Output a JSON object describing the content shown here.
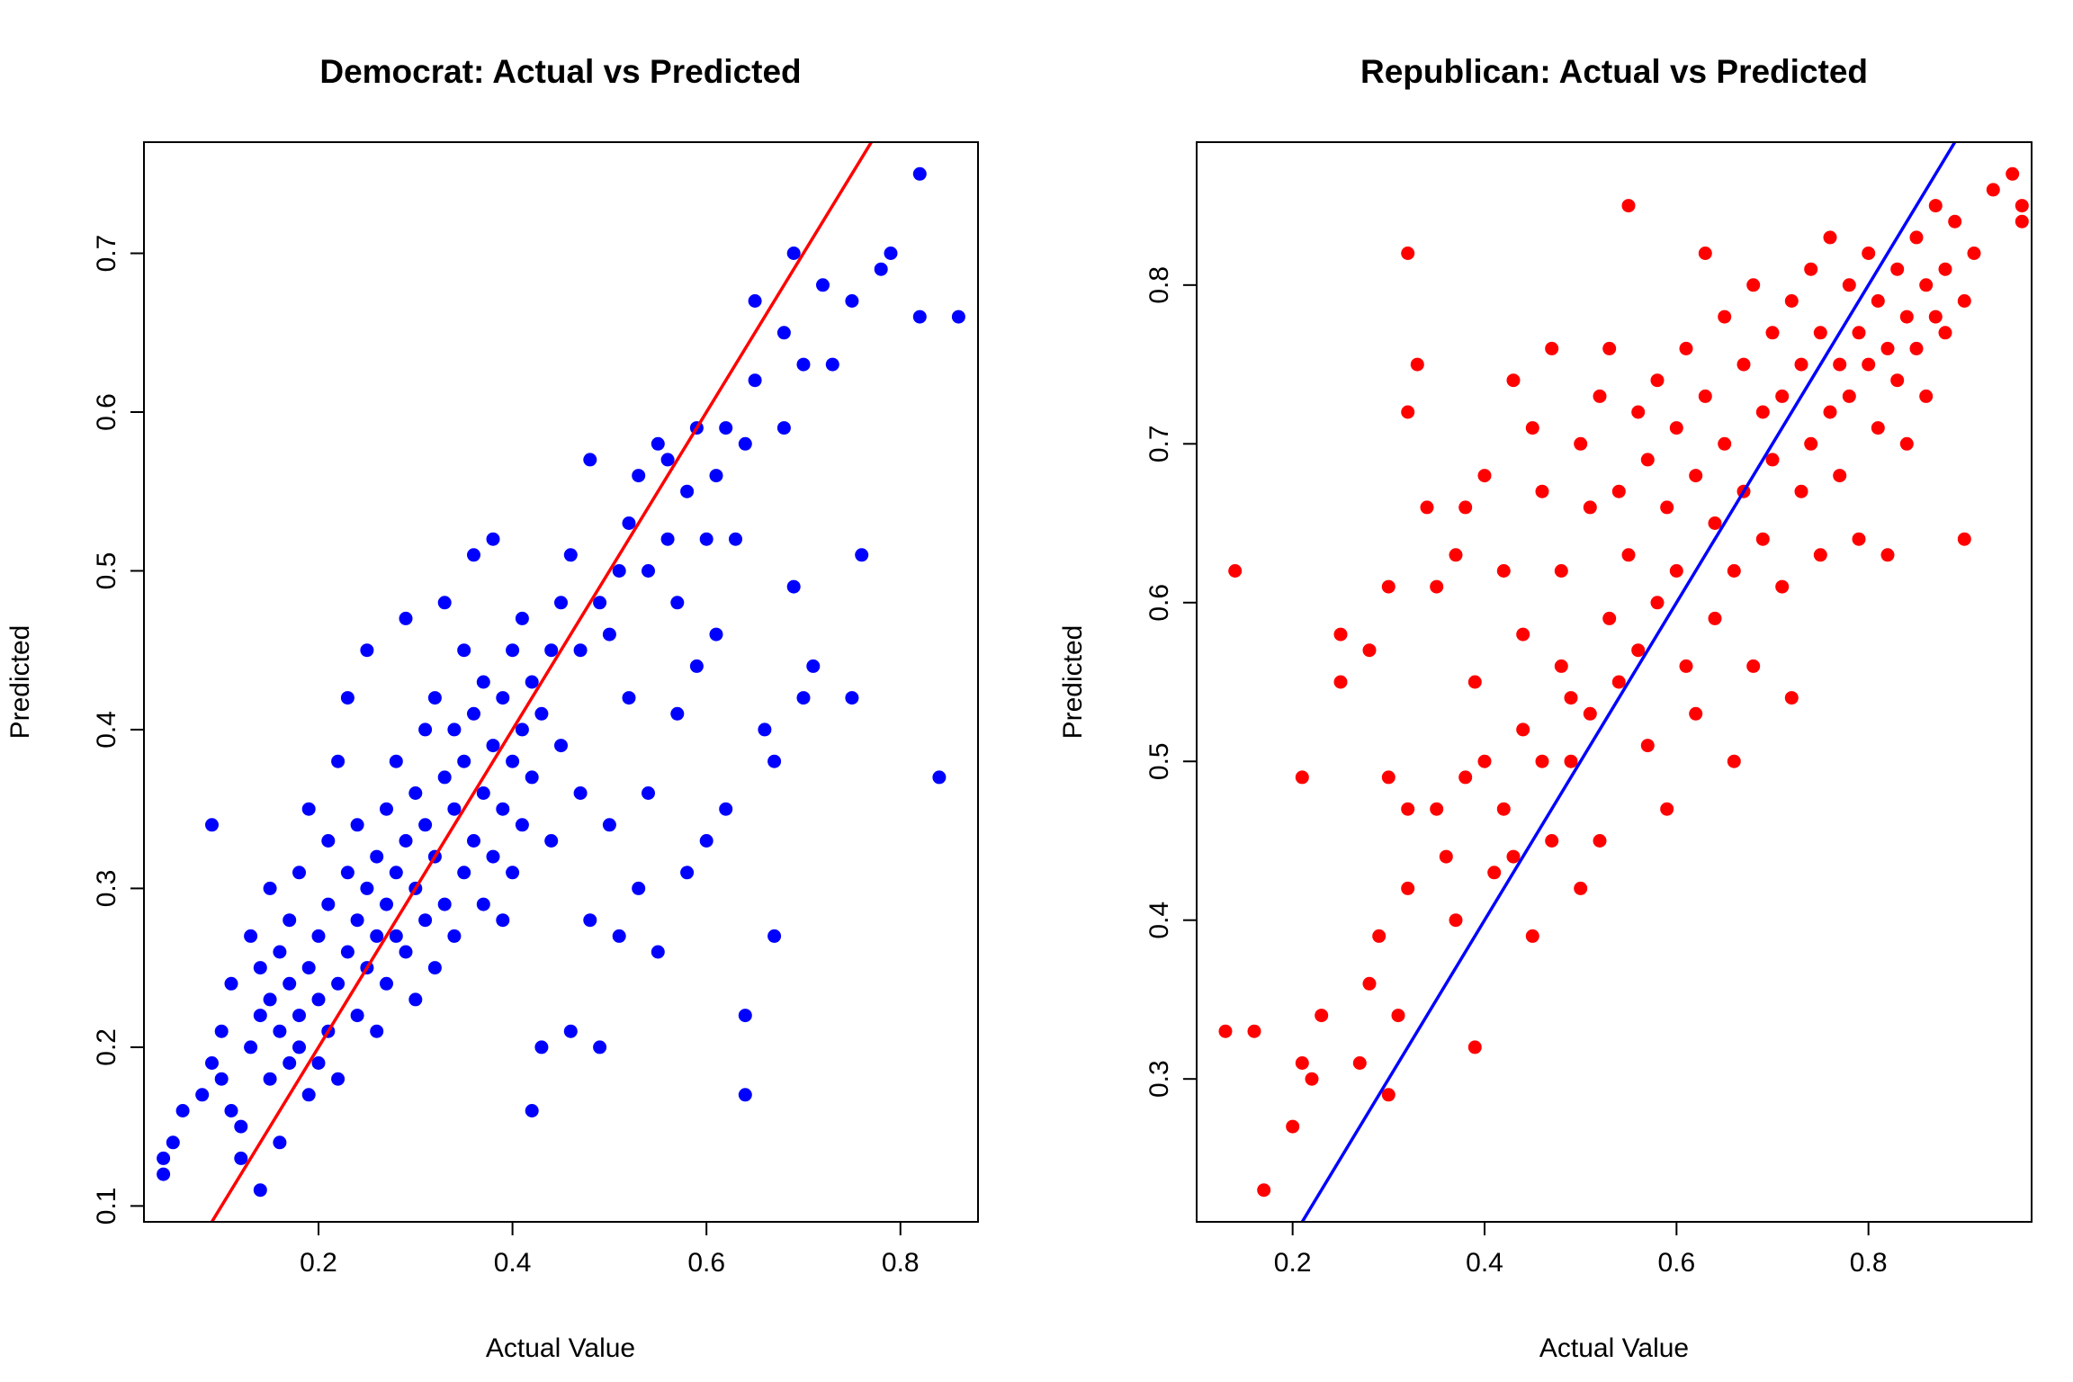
{
  "chart_data": [
    {
      "type": "scatter",
      "title": "Democrat: Actual vs Predicted",
      "xlabel": "Actual Value",
      "ylabel": "Predicted",
      "xlim": [
        0.02,
        0.88
      ],
      "ylim": [
        0.09,
        0.77
      ],
      "x_ticks": [
        "0.2",
        "0.4",
        "0.6",
        "0.8"
      ],
      "y_ticks": [
        "0.1",
        "0.2",
        "0.3",
        "0.4",
        "0.5",
        "0.6",
        "0.7"
      ],
      "point_color": "#0000ff",
      "line_color": "#ff0000",
      "reference_line": {
        "slope": 1.0,
        "intercept": 0.0
      },
      "grid": false,
      "points": [
        [
          0.04,
          0.12
        ],
        [
          0.04,
          0.13
        ],
        [
          0.05,
          0.14
        ],
        [
          0.06,
          0.16
        ],
        [
          0.08,
          0.17
        ],
        [
          0.09,
          0.19
        ],
        [
          0.1,
          0.18
        ],
        [
          0.1,
          0.21
        ],
        [
          0.11,
          0.24
        ],
        [
          0.11,
          0.16
        ],
        [
          0.12,
          0.13
        ],
        [
          0.12,
          0.15
        ],
        [
          0.13,
          0.2
        ],
        [
          0.13,
          0.27
        ],
        [
          0.14,
          0.22
        ],
        [
          0.14,
          0.25
        ],
        [
          0.14,
          0.11
        ],
        [
          0.15,
          0.18
        ],
        [
          0.15,
          0.23
        ],
        [
          0.15,
          0.3
        ],
        [
          0.16,
          0.21
        ],
        [
          0.16,
          0.26
        ],
        [
          0.16,
          0.14
        ],
        [
          0.17,
          0.19
        ],
        [
          0.17,
          0.24
        ],
        [
          0.17,
          0.28
        ],
        [
          0.18,
          0.2
        ],
        [
          0.18,
          0.22
        ],
        [
          0.18,
          0.31
        ],
        [
          0.19,
          0.25
        ],
        [
          0.19,
          0.17
        ],
        [
          0.19,
          0.35
        ],
        [
          0.2,
          0.23
        ],
        [
          0.2,
          0.27
        ],
        [
          0.2,
          0.19
        ],
        [
          0.21,
          0.29
        ],
        [
          0.21,
          0.21
        ],
        [
          0.21,
          0.33
        ],
        [
          0.22,
          0.24
        ],
        [
          0.22,
          0.38
        ],
        [
          0.22,
          0.18
        ],
        [
          0.23,
          0.26
        ],
        [
          0.23,
          0.31
        ],
        [
          0.23,
          0.42
        ],
        [
          0.24,
          0.22
        ],
        [
          0.24,
          0.28
        ],
        [
          0.24,
          0.34
        ],
        [
          0.25,
          0.25
        ],
        [
          0.25,
          0.3
        ],
        [
          0.25,
          0.45
        ],
        [
          0.26,
          0.27
        ],
        [
          0.26,
          0.32
        ],
        [
          0.26,
          0.21
        ],
        [
          0.27,
          0.29
        ],
        [
          0.27,
          0.35
        ],
        [
          0.27,
          0.24
        ],
        [
          0.28,
          0.31
        ],
        [
          0.28,
          0.27
        ],
        [
          0.28,
          0.38
        ],
        [
          0.29,
          0.33
        ],
        [
          0.29,
          0.26
        ],
        [
          0.29,
          0.47
        ],
        [
          0.3,
          0.3
        ],
        [
          0.3,
          0.36
        ],
        [
          0.3,
          0.23
        ],
        [
          0.31,
          0.28
        ],
        [
          0.31,
          0.4
        ],
        [
          0.31,
          0.34
        ],
        [
          0.32,
          0.32
        ],
        [
          0.32,
          0.25
        ],
        [
          0.32,
          0.42
        ],
        [
          0.33,
          0.37
        ],
        [
          0.33,
          0.29
        ],
        [
          0.33,
          0.48
        ],
        [
          0.34,
          0.35
        ],
        [
          0.34,
          0.27
        ],
        [
          0.34,
          0.4
        ],
        [
          0.35,
          0.38
        ],
        [
          0.35,
          0.31
        ],
        [
          0.35,
          0.45
        ],
        [
          0.36,
          0.41
        ],
        [
          0.36,
          0.33
        ],
        [
          0.36,
          0.51
        ],
        [
          0.37,
          0.36
        ],
        [
          0.37,
          0.29
        ],
        [
          0.37,
          0.43
        ],
        [
          0.38,
          0.39
        ],
        [
          0.38,
          0.32
        ],
        [
          0.38,
          0.52
        ],
        [
          0.39,
          0.42
        ],
        [
          0.39,
          0.35
        ],
        [
          0.39,
          0.28
        ],
        [
          0.4,
          0.38
        ],
        [
          0.4,
          0.45
        ],
        [
          0.4,
          0.31
        ],
        [
          0.41,
          0.4
        ],
        [
          0.41,
          0.47
        ],
        [
          0.41,
          0.34
        ],
        [
          0.42,
          0.43
        ],
        [
          0.42,
          0.37
        ],
        [
          0.42,
          0.16
        ],
        [
          0.43,
          0.41
        ],
        [
          0.43,
          0.2
        ],
        [
          0.44,
          0.45
        ],
        [
          0.44,
          0.33
        ],
        [
          0.45,
          0.48
        ],
        [
          0.45,
          0.39
        ],
        [
          0.46,
          0.51
        ],
        [
          0.46,
          0.21
        ],
        [
          0.47,
          0.45
        ],
        [
          0.47,
          0.36
        ],
        [
          0.48,
          0.57
        ],
        [
          0.48,
          0.28
        ],
        [
          0.49,
          0.48
        ],
        [
          0.49,
          0.2
        ],
        [
          0.5,
          0.46
        ],
        [
          0.5,
          0.34
        ],
        [
          0.51,
          0.5
        ],
        [
          0.51,
          0.27
        ],
        [
          0.52,
          0.53
        ],
        [
          0.52,
          0.42
        ],
        [
          0.53,
          0.56
        ],
        [
          0.53,
          0.3
        ],
        [
          0.54,
          0.5
        ],
        [
          0.54,
          0.36
        ],
        [
          0.55,
          0.58
        ],
        [
          0.55,
          0.26
        ],
        [
          0.56,
          0.52
        ],
        [
          0.56,
          0.57
        ],
        [
          0.57,
          0.41
        ],
        [
          0.57,
          0.48
        ],
        [
          0.58,
          0.55
        ],
        [
          0.58,
          0.31
        ],
        [
          0.59,
          0.44
        ],
        [
          0.59,
          0.59
        ],
        [
          0.6,
          0.52
        ],
        [
          0.6,
          0.33
        ],
        [
          0.61,
          0.56
        ],
        [
          0.61,
          0.46
        ],
        [
          0.62,
          0.59
        ],
        [
          0.62,
          0.35
        ],
        [
          0.63,
          0.52
        ],
        [
          0.64,
          0.58
        ],
        [
          0.64,
          0.17
        ],
        [
          0.64,
          0.22
        ],
        [
          0.65,
          0.62
        ],
        [
          0.65,
          0.67
        ],
        [
          0.66,
          0.4
        ],
        [
          0.67,
          0.27
        ],
        [
          0.67,
          0.38
        ],
        [
          0.68,
          0.65
        ],
        [
          0.68,
          0.59
        ],
        [
          0.69,
          0.7
        ],
        [
          0.69,
          0.49
        ],
        [
          0.7,
          0.63
        ],
        [
          0.7,
          0.42
        ],
        [
          0.71,
          0.44
        ],
        [
          0.72,
          0.68
        ],
        [
          0.73,
          0.63
        ],
        [
          0.75,
          0.67
        ],
        [
          0.75,
          0.42
        ],
        [
          0.76,
          0.51
        ],
        [
          0.78,
          0.69
        ],
        [
          0.79,
          0.7
        ],
        [
          0.82,
          0.75
        ],
        [
          0.82,
          0.66
        ],
        [
          0.84,
          0.37
        ],
        [
          0.86,
          0.66
        ],
        [
          0.09,
          0.34
        ]
      ]
    },
    {
      "type": "scatter",
      "title": "Republican: Actual vs Predicted",
      "xlabel": "Actual Value",
      "ylabel": "Predicted",
      "xlim": [
        0.1,
        0.97
      ],
      "ylim": [
        0.21,
        0.89
      ],
      "x_ticks": [
        "0.2",
        "0.4",
        "0.6",
        "0.8"
      ],
      "y_ticks": [
        "0.3",
        "0.4",
        "0.5",
        "0.6",
        "0.7",
        "0.8"
      ],
      "point_color": "#ff0000",
      "line_color": "#0000ff",
      "reference_line": {
        "slope": 1.0,
        "intercept": 0.0
      },
      "grid": false,
      "points": [
        [
          0.13,
          0.33
        ],
        [
          0.14,
          0.62
        ],
        [
          0.16,
          0.33
        ],
        [
          0.17,
          0.23
        ],
        [
          0.2,
          0.27
        ],
        [
          0.21,
          0.49
        ],
        [
          0.21,
          0.31
        ],
        [
          0.22,
          0.3
        ],
        [
          0.23,
          0.34
        ],
        [
          0.25,
          0.58
        ],
        [
          0.25,
          0.55
        ],
        [
          0.27,
          0.31
        ],
        [
          0.28,
          0.57
        ],
        [
          0.28,
          0.36
        ],
        [
          0.29,
          0.39
        ],
        [
          0.3,
          0.49
        ],
        [
          0.3,
          0.61
        ],
        [
          0.3,
          0.29
        ],
        [
          0.31,
          0.34
        ],
        [
          0.32,
          0.72
        ],
        [
          0.32,
          0.82
        ],
        [
          0.32,
          0.47
        ],
        [
          0.32,
          0.42
        ],
        [
          0.33,
          0.75
        ],
        [
          0.34,
          0.66
        ],
        [
          0.35,
          0.61
        ],
        [
          0.35,
          0.47
        ],
        [
          0.36,
          0.44
        ],
        [
          0.37,
          0.63
        ],
        [
          0.37,
          0.4
        ],
        [
          0.38,
          0.66
        ],
        [
          0.38,
          0.49
        ],
        [
          0.39,
          0.55
        ],
        [
          0.39,
          0.32
        ],
        [
          0.4,
          0.68
        ],
        [
          0.4,
          0.5
        ],
        [
          0.41,
          0.43
        ],
        [
          0.42,
          0.62
        ],
        [
          0.42,
          0.47
        ],
        [
          0.43,
          0.74
        ],
        [
          0.43,
          0.44
        ],
        [
          0.44,
          0.58
        ],
        [
          0.44,
          0.52
        ],
        [
          0.45,
          0.71
        ],
        [
          0.45,
          0.39
        ],
        [
          0.46,
          0.67
        ],
        [
          0.46,
          0.5
        ],
        [
          0.47,
          0.76
        ],
        [
          0.47,
          0.45
        ],
        [
          0.48,
          0.56
        ],
        [
          0.48,
          0.62
        ],
        [
          0.49,
          0.54
        ],
        [
          0.49,
          0.5
        ],
        [
          0.5,
          0.7
        ],
        [
          0.5,
          0.42
        ],
        [
          0.51,
          0.66
        ],
        [
          0.51,
          0.53
        ],
        [
          0.52,
          0.73
        ],
        [
          0.52,
          0.45
        ],
        [
          0.53,
          0.59
        ],
        [
          0.53,
          0.76
        ],
        [
          0.54,
          0.67
        ],
        [
          0.54,
          0.55
        ],
        [
          0.55,
          0.85
        ],
        [
          0.55,
          0.63
        ],
        [
          0.56,
          0.72
        ],
        [
          0.56,
          0.57
        ],
        [
          0.57,
          0.69
        ],
        [
          0.57,
          0.51
        ],
        [
          0.58,
          0.74
        ],
        [
          0.58,
          0.6
        ],
        [
          0.59,
          0.66
        ],
        [
          0.59,
          0.47
        ],
        [
          0.6,
          0.71
        ],
        [
          0.6,
          0.62
        ],
        [
          0.61,
          0.76
        ],
        [
          0.61,
          0.56
        ],
        [
          0.62,
          0.68
        ],
        [
          0.62,
          0.53
        ],
        [
          0.63,
          0.73
        ],
        [
          0.63,
          0.82
        ],
        [
          0.64,
          0.65
        ],
        [
          0.64,
          0.59
        ],
        [
          0.65,
          0.78
        ],
        [
          0.65,
          0.7
        ],
        [
          0.66,
          0.62
        ],
        [
          0.66,
          0.5
        ],
        [
          0.67,
          0.75
        ],
        [
          0.67,
          0.67
        ],
        [
          0.68,
          0.8
        ],
        [
          0.68,
          0.56
        ],
        [
          0.69,
          0.72
        ],
        [
          0.69,
          0.64
        ],
        [
          0.7,
          0.77
        ],
        [
          0.7,
          0.69
        ],
        [
          0.71,
          0.73
        ],
        [
          0.71,
          0.61
        ],
        [
          0.72,
          0.79
        ],
        [
          0.72,
          0.54
        ],
        [
          0.73,
          0.75
        ],
        [
          0.73,
          0.67
        ],
        [
          0.74,
          0.81
        ],
        [
          0.74,
          0.7
        ],
        [
          0.75,
          0.77
        ],
        [
          0.75,
          0.63
        ],
        [
          0.76,
          0.83
        ],
        [
          0.76,
          0.72
        ],
        [
          0.77,
          0.75
        ],
        [
          0.77,
          0.68
        ],
        [
          0.78,
          0.8
        ],
        [
          0.78,
          0.73
        ],
        [
          0.79,
          0.77
        ],
        [
          0.79,
          0.64
        ],
        [
          0.8,
          0.82
        ],
        [
          0.8,
          0.75
        ],
        [
          0.81,
          0.71
        ],
        [
          0.81,
          0.79
        ],
        [
          0.82,
          0.76
        ],
        [
          0.82,
          0.63
        ],
        [
          0.83,
          0.81
        ],
        [
          0.83,
          0.74
        ],
        [
          0.84,
          0.78
        ],
        [
          0.84,
          0.7
        ],
        [
          0.85,
          0.83
        ],
        [
          0.85,
          0.76
        ],
        [
          0.86,
          0.8
        ],
        [
          0.86,
          0.73
        ],
        [
          0.87,
          0.85
        ],
        [
          0.87,
          0.78
        ],
        [
          0.88,
          0.81
        ],
        [
          0.88,
          0.77
        ],
        [
          0.89,
          0.84
        ],
        [
          0.9,
          0.64
        ],
        [
          0.9,
          0.79
        ],
        [
          0.91,
          0.82
        ],
        [
          0.93,
          0.86
        ],
        [
          0.95,
          0.87
        ],
        [
          0.96,
          0.84
        ],
        [
          0.96,
          0.85
        ]
      ]
    }
  ]
}
